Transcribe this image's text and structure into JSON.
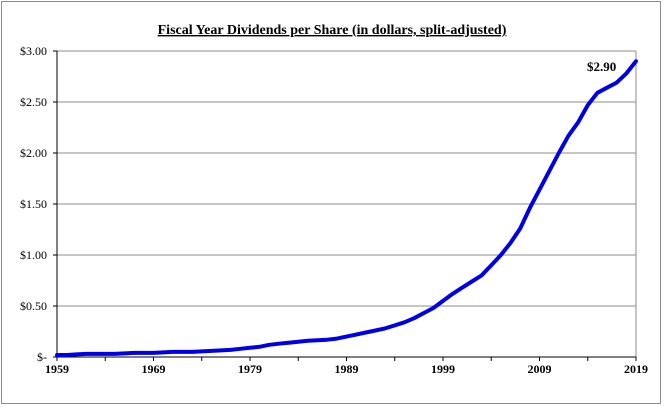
{
  "chart_data": {
    "type": "line",
    "title": "Fiscal Year Dividends per Share (in dollars, split-adjusted)",
    "xlabel": "",
    "ylabel": "",
    "xlim": [
      1959,
      2019
    ],
    "ylim": [
      0,
      3.0
    ],
    "x_ticks": [
      1959,
      1969,
      1979,
      1989,
      1999,
      2009,
      2019
    ],
    "x_tick_labels": [
      "1959",
      "1969",
      "1979",
      "1989",
      "1999",
      "2009",
      "2019"
    ],
    "y_ticks": [
      0,
      0.5,
      1.0,
      1.5,
      2.0,
      2.5,
      3.0
    ],
    "y_tick_labels": [
      "$-",
      "$0.50",
      "$1.00",
      "$1.50",
      "$2.00",
      "$2.50",
      "$3.00"
    ],
    "grid": "horizontal",
    "line_color": "#0000e6",
    "annotation": "$2.90",
    "series": [
      {
        "x": [
          1959,
          1960,
          1961,
          1962,
          1963,
          1964,
          1965,
          1966,
          1967,
          1968,
          1969,
          1970,
          1971,
          1972,
          1973,
          1974,
          1975,
          1976,
          1977,
          1978,
          1979,
          1980,
          1981,
          1982,
          1983,
          1984,
          1985,
          1986,
          1987,
          1988,
          1989,
          1990,
          1991,
          1992,
          1993,
          1994,
          1995,
          1996,
          1997,
          1998,
          1999,
          2000,
          2001,
          2002,
          2003,
          2004,
          2005,
          2006,
          2007,
          2008,
          2009,
          2010,
          2011,
          2012,
          2013,
          2014,
          2015,
          2016,
          2017,
          2018,
          2019
        ],
        "values": [
          0.02,
          0.02,
          0.025,
          0.03,
          0.03,
          0.03,
          0.03,
          0.035,
          0.04,
          0.04,
          0.04,
          0.045,
          0.05,
          0.05,
          0.05,
          0.055,
          0.06,
          0.065,
          0.07,
          0.08,
          0.09,
          0.1,
          0.12,
          0.13,
          0.14,
          0.15,
          0.16,
          0.165,
          0.17,
          0.18,
          0.2,
          0.22,
          0.24,
          0.26,
          0.28,
          0.31,
          0.34,
          0.38,
          0.43,
          0.48,
          0.55,
          0.62,
          0.68,
          0.74,
          0.8,
          0.9,
          1.0,
          1.12,
          1.26,
          1.46,
          1.64,
          1.82,
          2.0,
          2.17,
          2.3,
          2.47,
          2.59,
          2.64,
          2.69,
          2.78,
          2.9
        ]
      }
    ]
  }
}
